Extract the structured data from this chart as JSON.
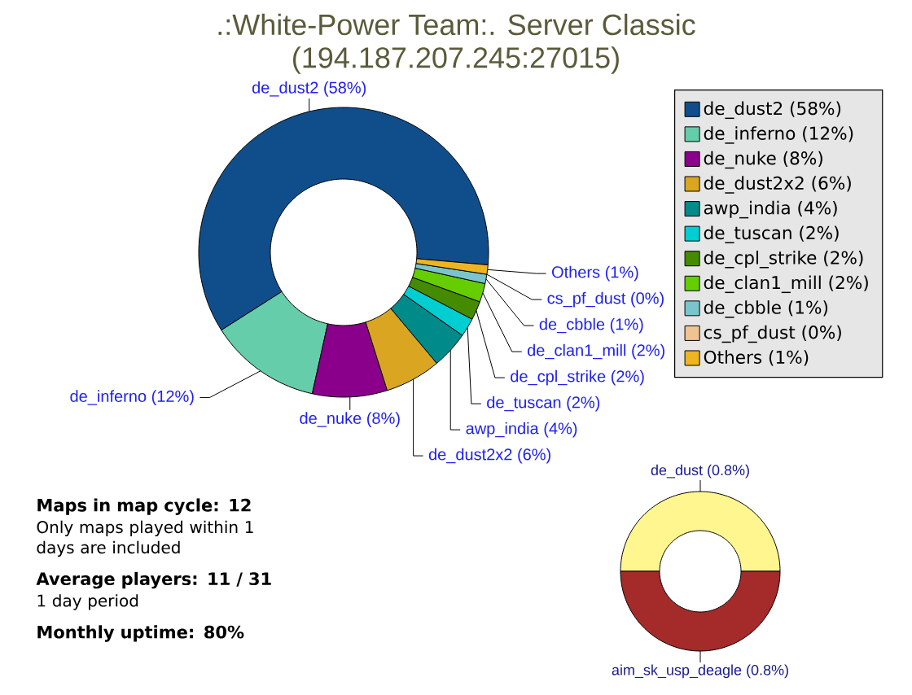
{
  "chart_data": [
    {
      "type": "donut",
      "title": ".:White-Power Team:. Server Classic",
      "subtitle": "(194.187.207.245:27015)",
      "categories": [
        "de_dust2",
        "de_inferno",
        "de_nuke",
        "de_dust2x2",
        "awp_india",
        "de_tuscan",
        "de_cpl_strike",
        "de_clan1_mill",
        "de_cbble",
        "cs_pf_dust",
        "Others"
      ],
      "values": [
        58,
        12,
        8,
        6,
        4,
        2,
        2,
        2,
        1,
        0,
        1
      ],
      "value_labels": [
        "(58%)",
        "(12%)",
        "(8%)",
        "(6%)",
        "(4%)",
        "(2%)",
        "(2%)",
        "(2%)",
        "(1%)",
        "(0%)",
        "(1%)"
      ],
      "colors": [
        "#104e8b",
        "#66cdaa",
        "#8b008b",
        "#daa520",
        "#008b8b",
        "#00ced1",
        "#458b00",
        "#66cd00",
        "#7ac5cd",
        "#eec591",
        "#eeb422"
      ],
      "legend": "top right"
    },
    {
      "type": "other",
      "annotations": [
        "Maps in map cycle: 12",
        "Only maps played within 1 days are included",
        "Average players: 11 / 31",
        "1 day period",
        "Monthly uptime: 80%"
      ]
    },
    {
      "type": "donut",
      "categories": [
        "de_dust",
        "aim_sk_usp_deagle"
      ],
      "values": [
        0.8,
        0.8
      ],
      "value_labels": [
        "(0.8%)",
        "(0.8%)"
      ],
      "colors": [
        "#fff68f",
        "#a52a2a"
      ]
    }
  ]
}
